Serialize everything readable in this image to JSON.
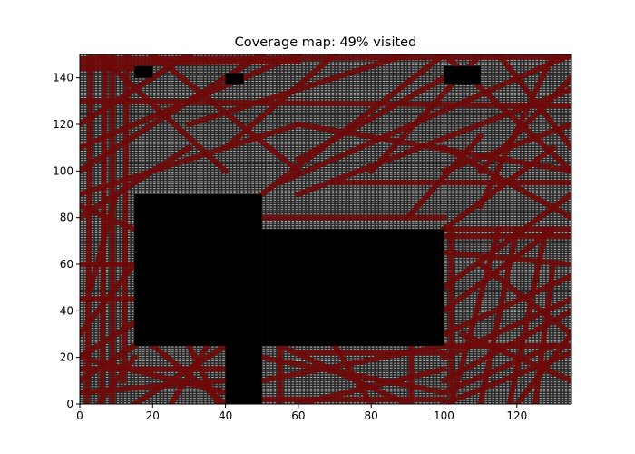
{
  "chart_data": {
    "type": "heatmap",
    "title": "Coverage map: 49% visited",
    "coverage_percent": 49,
    "xlabel": "",
    "ylabel": "",
    "xlim": [
      0,
      135
    ],
    "ylim": [
      0,
      150
    ],
    "xticks": [
      0,
      20,
      40,
      60,
      80,
      100,
      120
    ],
    "yticks": [
      0,
      20,
      40,
      60,
      80,
      100,
      120,
      140
    ],
    "grid_step": 1,
    "legend": "none",
    "colors": {
      "unvisited": "#b4b4b4",
      "cell_gridline": "#1a1a1a",
      "visited": "#6e0a0a",
      "obstacle": "#000000"
    },
    "obstacles": [
      {
        "x0": 15,
        "x1": 50,
        "y0": 25,
        "y1": 90
      },
      {
        "x0": 50,
        "x1": 100,
        "y0": 25,
        "y1": 75
      },
      {
        "x0": 40,
        "x1": 50,
        "y0": 0,
        "y1": 25
      },
      {
        "x0": 15,
        "x1": 20,
        "y0": 140,
        "y1": 145
      },
      {
        "x0": 40,
        "x1": 45,
        "y0": 137,
        "y1": 142
      },
      {
        "x0": 100,
        "x1": 110,
        "y0": 137,
        "y1": 145
      }
    ],
    "paths": [
      [
        [
          2,
          0
        ],
        [
          3,
          150
        ]
      ],
      [
        [
          6,
          0
        ],
        [
          7,
          150
        ]
      ],
      [
        [
          9,
          0
        ],
        [
          9,
          150
        ]
      ],
      [
        [
          12,
          10
        ],
        [
          13,
          150
        ]
      ],
      [
        [
          0,
          148
        ],
        [
          135,
          149
        ]
      ],
      [
        [
          0,
          146
        ],
        [
          60,
          147
        ]
      ],
      [
        [
          0,
          144
        ],
        [
          15,
          144
        ]
      ],
      [
        [
          0,
          130
        ],
        [
          135,
          128
        ]
      ],
      [
        [
          0,
          110
        ],
        [
          60,
          150
        ]
      ],
      [
        [
          0,
          100
        ],
        [
          50,
          150
        ]
      ],
      [
        [
          0,
          120
        ],
        [
          30,
          150
        ]
      ],
      [
        [
          0,
          90
        ],
        [
          60,
          120
        ]
      ],
      [
        [
          0,
          80
        ],
        [
          30,
          110
        ]
      ],
      [
        [
          5,
          150
        ],
        [
          40,
          100
        ]
      ],
      [
        [
          20,
          150
        ],
        [
          60,
          100
        ]
      ],
      [
        [
          30,
          120
        ],
        [
          90,
          150
        ]
      ],
      [
        [
          40,
          110
        ],
        [
          70,
          150
        ]
      ],
      [
        [
          50,
          90
        ],
        [
          100,
          150
        ]
      ],
      [
        [
          60,
          105
        ],
        [
          100,
          140
        ]
      ],
      [
        [
          55,
          95
        ],
        [
          135,
          150
        ]
      ],
      [
        [
          60,
          120
        ],
        [
          135,
          100
        ]
      ],
      [
        [
          70,
          95
        ],
        [
          135,
          95
        ]
      ],
      [
        [
          60,
          90
        ],
        [
          135,
          135
        ]
      ],
      [
        [
          80,
          100
        ],
        [
          110,
          150
        ]
      ],
      [
        [
          100,
          100
        ],
        [
          135,
          120
        ]
      ],
      [
        [
          90,
          80
        ],
        [
          110,
          115
        ]
      ],
      [
        [
          100,
          110
        ],
        [
          135,
          80
        ]
      ],
      [
        [
          110,
          100
        ],
        [
          135,
          140
        ]
      ],
      [
        [
          100,
          150
        ],
        [
          135,
          100
        ]
      ],
      [
        [
          110,
          85
        ],
        [
          130,
          150
        ]
      ],
      [
        [
          115,
          150
        ],
        [
          135,
          110
        ]
      ],
      [
        [
          50,
          80
        ],
        [
          100,
          80
        ]
      ],
      [
        [
          100,
          75
        ],
        [
          130,
          110
        ]
      ],
      [
        [
          100,
          75
        ],
        [
          135,
          75
        ]
      ],
      [
        [
          100,
          72
        ],
        [
          135,
          72
        ]
      ],
      [
        [
          100,
          65
        ],
        [
          135,
          60
        ]
      ],
      [
        [
          100,
          50
        ],
        [
          135,
          90
        ]
      ],
      [
        [
          100,
          40
        ],
        [
          130,
          75
        ]
      ],
      [
        [
          100,
          30
        ],
        [
          135,
          55
        ]
      ],
      [
        [
          100,
          25
        ],
        [
          135,
          25
        ]
      ],
      [
        [
          100,
          20
        ],
        [
          135,
          45
        ]
      ],
      [
        [
          102,
          0
        ],
        [
          115,
          75
        ]
      ],
      [
        [
          110,
          0
        ],
        [
          120,
          75
        ]
      ],
      [
        [
          105,
          30
        ],
        [
          135,
          10
        ]
      ],
      [
        [
          100,
          10
        ],
        [
          135,
          40
        ]
      ],
      [
        [
          100,
          0
        ],
        [
          135,
          22
        ]
      ],
      [
        [
          120,
          0
        ],
        [
          135,
          30
        ]
      ],
      [
        [
          100,
          5
        ],
        [
          130,
          25
        ]
      ],
      [
        [
          110,
          60
        ],
        [
          135,
          30
        ]
      ],
      [
        [
          118,
          0
        ],
        [
          128,
          75
        ]
      ],
      [
        [
          125,
          0
        ],
        [
          130,
          60
        ]
      ],
      [
        [
          102,
          0
        ],
        [
          102,
          75
        ]
      ],
      [
        [
          0,
          60
        ],
        [
          15,
          60
        ]
      ],
      [
        [
          0,
          45
        ],
        [
          15,
          45
        ]
      ],
      [
        [
          0,
          30
        ],
        [
          15,
          60
        ]
      ],
      [
        [
          0,
          20
        ],
        [
          15,
          35
        ]
      ],
      [
        [
          0,
          10
        ],
        [
          15,
          25
        ]
      ],
      [
        [
          5,
          0
        ],
        [
          15,
          20
        ]
      ],
      [
        [
          0,
          85
        ],
        [
          15,
          75
        ]
      ],
      [
        [
          3,
          50
        ],
        [
          10,
          90
        ]
      ],
      [
        [
          0,
          20
        ],
        [
          40,
          5
        ]
      ],
      [
        [
          0,
          15
        ],
        [
          40,
          15
        ]
      ],
      [
        [
          15,
          0
        ],
        [
          40,
          25
        ]
      ],
      [
        [
          20,
          25
        ],
        [
          40,
          0
        ]
      ],
      [
        [
          30,
          25
        ],
        [
          38,
          0
        ]
      ],
      [
        [
          25,
          0
        ],
        [
          35,
          25
        ]
      ],
      [
        [
          0,
          5
        ],
        [
          40,
          10
        ]
      ],
      [
        [
          50,
          20
        ],
        [
          100,
          5
        ]
      ],
      [
        [
          50,
          10
        ],
        [
          100,
          25
        ]
      ],
      [
        [
          55,
          25
        ],
        [
          90,
          0
        ]
      ],
      [
        [
          60,
          0
        ],
        [
          100,
          15
        ]
      ],
      [
        [
          70,
          25
        ],
        [
          80,
          0
        ]
      ],
      [
        [
          50,
          2
        ],
        [
          100,
          2
        ]
      ],
      [
        [
          91,
          0
        ],
        [
          91,
          25
        ]
      ],
      [
        [
          55,
          0
        ],
        [
          55,
          25
        ]
      ],
      [
        [
          60,
          22
        ],
        [
          100,
          22
        ]
      ]
    ]
  }
}
